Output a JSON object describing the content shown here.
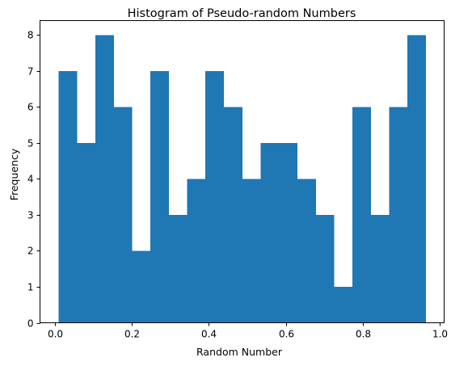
{
  "chart_data": {
    "type": "bar",
    "subtype": "histogram",
    "title": "Histogram of Pseudo-random Numbers",
    "xlabel": "Random Number",
    "ylabel": "Frequency",
    "bin_start": 0.0085,
    "bin_width": 0.0478,
    "values": [
      7,
      5,
      8,
      6,
      2,
      7,
      3,
      4,
      7,
      6,
      4,
      5,
      5,
      4,
      3,
      1,
      6,
      3,
      6,
      8
    ],
    "xlim": [
      -0.0395,
      1.0123
    ],
    "ylim": [
      0,
      8.4
    ],
    "xticks": [
      0.0,
      0.2,
      0.4,
      0.6,
      0.8,
      1.0
    ],
    "xtick_labels": [
      "0.0",
      "0.2",
      "0.4",
      "0.6",
      "0.8",
      "1.0"
    ],
    "yticks": [
      0,
      1,
      2,
      3,
      4,
      5,
      6,
      7,
      8
    ],
    "ytick_labels": [
      "0",
      "1",
      "2",
      "3",
      "4",
      "5",
      "6",
      "7",
      "8"
    ],
    "bar_color": "#1f77b4",
    "grid": false,
    "legend": "none"
  }
}
